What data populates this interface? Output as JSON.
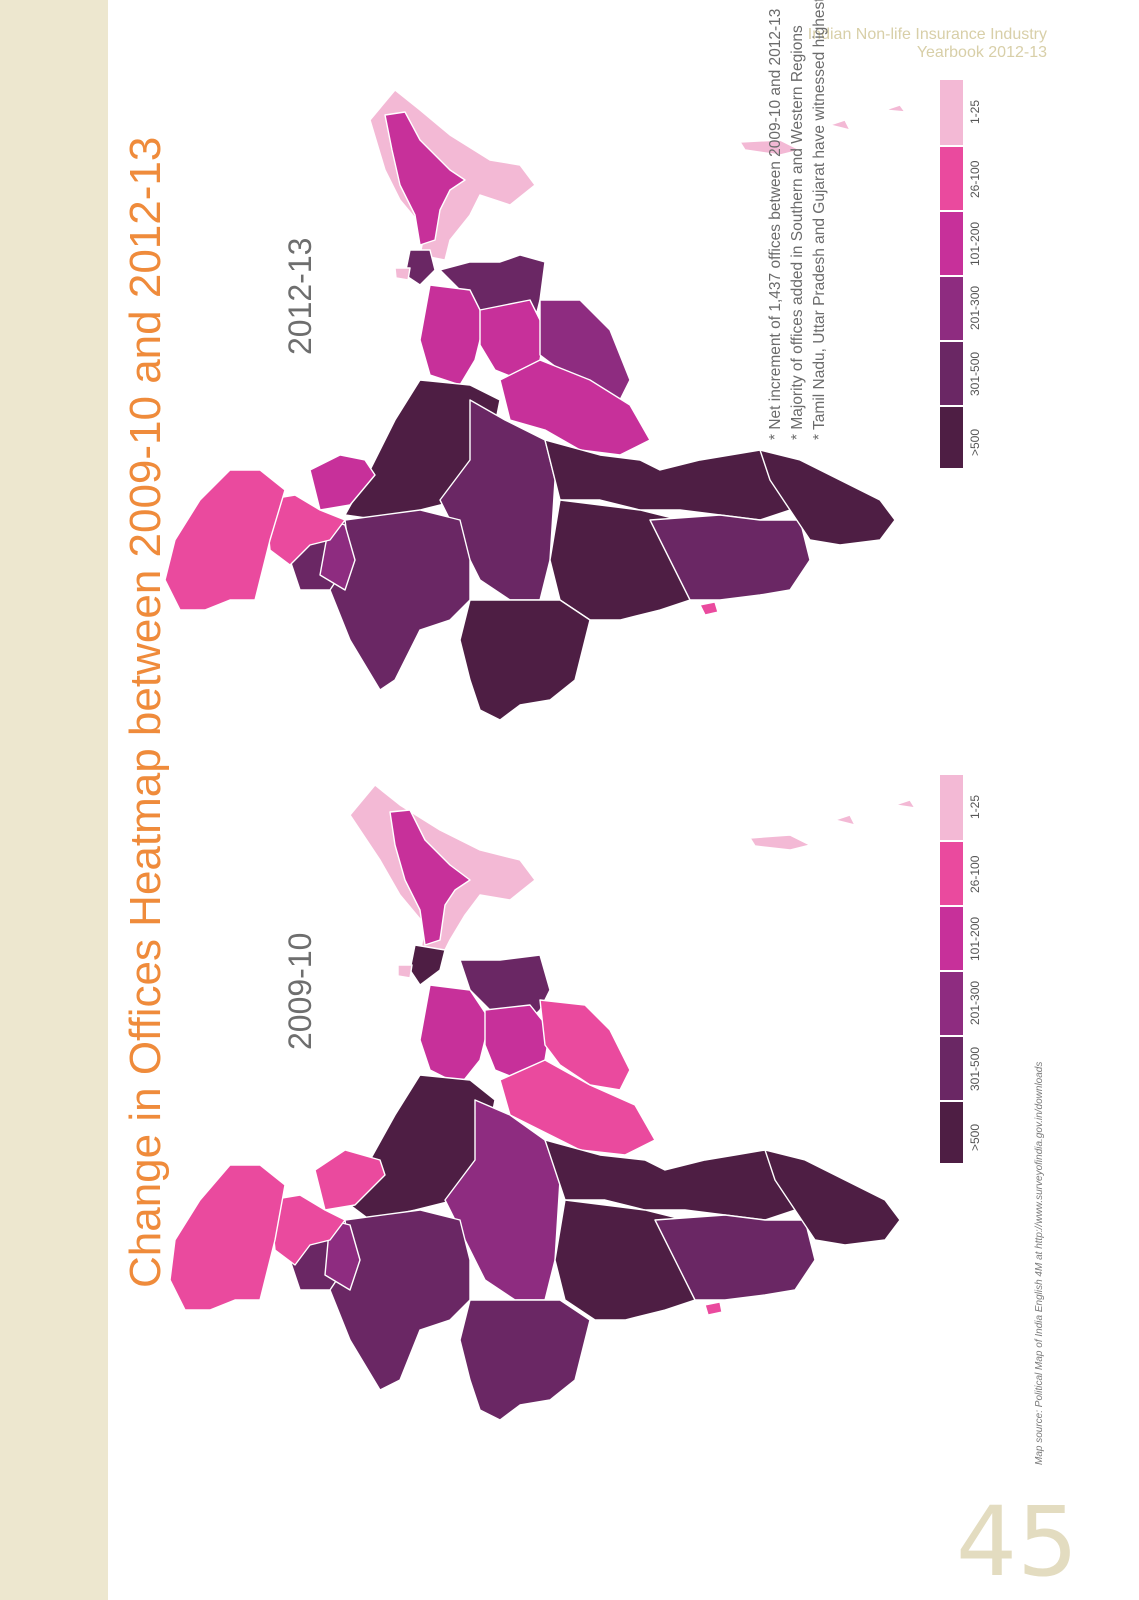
{
  "header": {
    "line1": "Indian Non-life Insurance Industry",
    "line2": "Yearbook 2012-13"
  },
  "title": "Change in Offices Heatmap between 2009-10 and 2012-13",
  "maps": [
    {
      "label": "2009-10"
    },
    {
      "label": "2012-13"
    }
  ],
  "legend": {
    "items": [
      {
        "label": ">500",
        "color": "#4e1e44"
      },
      {
        "label": "301-500",
        "color": "#6a2764"
      },
      {
        "label": "201-300",
        "color": "#8e2c80"
      },
      {
        "label": "101-200",
        "color": "#c7309a"
      },
      {
        "label": "26-100",
        "color": "#ea4a9e"
      },
      {
        "label": "1-25",
        "color": "#f3b9d5"
      }
    ]
  },
  "notes": [
    "* Net increment of 1,437 offices between 2009-10 and 2012-13",
    "* Majority of offices added in Southern and Western Regions",
    "* Tamil Nadu, Uttar Pradesh and Gujarat have witnessed highest increment in offices"
  ],
  "source": "Map source: Political Map of India English 4M at http://www.surveyofindia.gov.in/downloads",
  "page_number": "45"
}
